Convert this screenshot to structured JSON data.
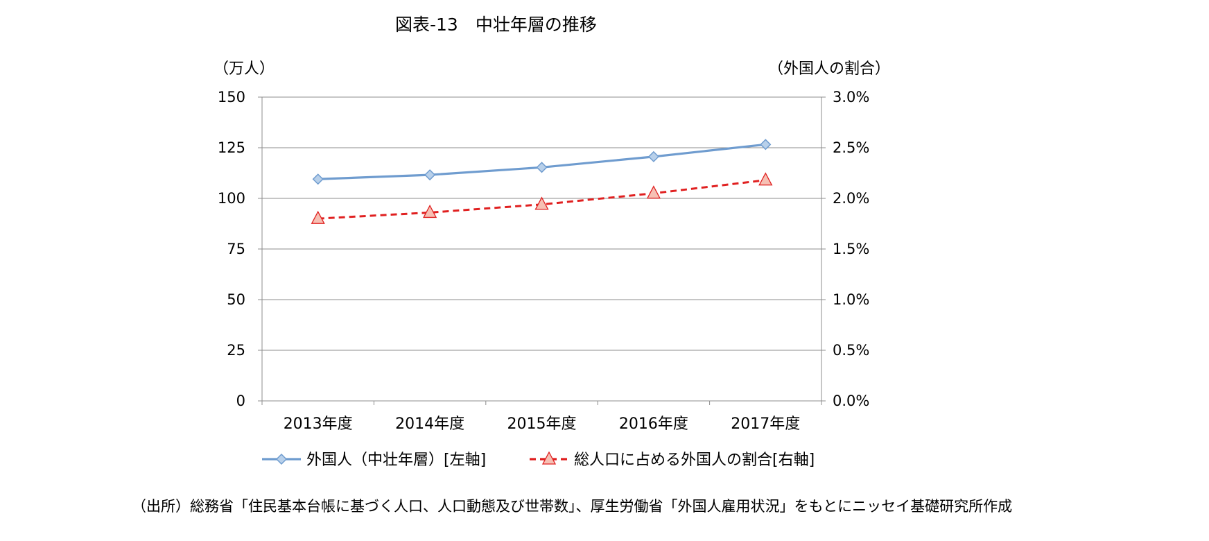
{
  "chart_data": {
    "type": "line",
    "title": "図表-13　中壮年層の推移",
    "y_left_unit": "（万人）",
    "y_right_unit": "（外国人の割合）",
    "categories": [
      "2013年度",
      "2014年度",
      "2015年度",
      "2016年度",
      "2017年度"
    ],
    "y_left_ticks": [
      "0",
      "25",
      "50",
      "75",
      "100",
      "125",
      "150"
    ],
    "y_right_ticks": [
      "0.0%",
      "0.5%",
      "1.0%",
      "1.5%",
      "2.0%",
      "2.5%",
      "3.0%"
    ],
    "ylim_left": [
      0,
      150
    ],
    "ylim_right": [
      0,
      3.0
    ],
    "grid": true,
    "legend_position": "bottom",
    "series": [
      {
        "name": "外国人（中壮年層）[左軸]",
        "axis": "left",
        "values": [
          109.5,
          111.6,
          115.3,
          120.6,
          126.6
        ],
        "color": "#6f9ccf",
        "marker": "diamond",
        "marker_fill": "#b8d0ea",
        "line_style": "solid"
      },
      {
        "name": "総人口に占める外国人の割合[右軸]",
        "axis": "right",
        "values": [
          1.8,
          1.86,
          1.94,
          2.05,
          2.18
        ],
        "color": "#e02020",
        "marker": "triangle",
        "marker_fill": "#f6c0b4",
        "line_style": "dashed"
      }
    ]
  },
  "source": "（出所）総務省「住民基本台帳に基づく人口、人口動態及び世帯数」、厚生労働省「外国人雇用状況」をもとにニッセイ基礎研究所作成"
}
